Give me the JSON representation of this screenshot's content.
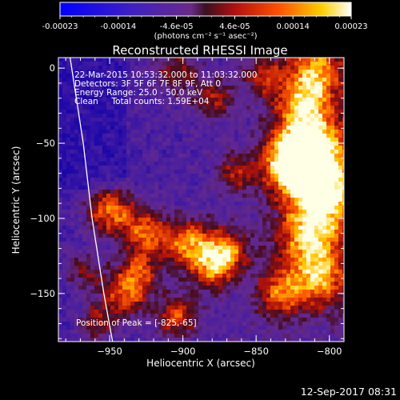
{
  "colorbar": {
    "ticks": [
      "-0.00023",
      "-0.00014",
      "-4.6e-05",
      "4.6e-05",
      "0.00014",
      "0.00023"
    ],
    "unit_label": "(photons cm⁻² s⁻¹ asec⁻²)"
  },
  "chart_data": {
    "type": "heatmap",
    "title": "Reconstructed RHESSI Image",
    "xlabel": "Heliocentric X (arcsec)",
    "ylabel": "Heliocentric Y (arcsec)",
    "xlim": [
      -985,
      -790
    ],
    "ylim": [
      -182,
      7
    ],
    "x_ticks": [
      -950,
      -900,
      -850,
      -800
    ],
    "y_ticks": [
      0,
      -50,
      -100,
      -150
    ],
    "color_scale": {
      "min": -0.00023,
      "max": 0.00023,
      "colormap": "blue-purple-red-yellow-white"
    },
    "info_lines": [
      "22-Mar-2015 10:53:32.000 to 11:03:32.000",
      "Detectors: 3F 5F 6F 7F 8F 9F, Att 0",
      "Energy Range: 25.0 - 50.0 keV",
      "Clean     Total counts: 1.59E+04"
    ],
    "peak_annotation": "Position of Peak = [-825,-65]",
    "peak": {
      "x": -825,
      "y": -65
    },
    "limb_curve": [
      [
        -977,
        7
      ],
      [
        -968,
        -50
      ],
      [
        -962,
        -100
      ],
      [
        -954,
        -150
      ],
      [
        -948,
        -182
      ]
    ]
  },
  "footer": {
    "timestamp": "12-Sep-2017 08:31"
  }
}
